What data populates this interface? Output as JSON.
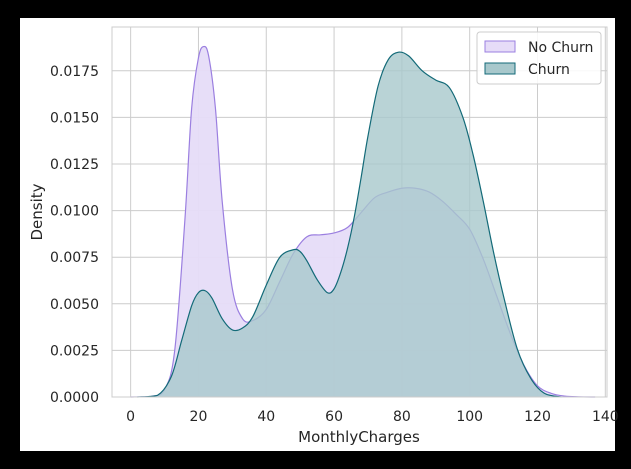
{
  "chart_data": {
    "type": "area",
    "title": "",
    "xlabel": "MonthlyCharges",
    "ylabel": "Density",
    "xlim": [
      -5.5,
      140.5
    ],
    "ylim": [
      0,
      0.01985
    ],
    "x_ticks": [
      "0",
      "20",
      "40",
      "60",
      "80",
      "100",
      "120",
      "140"
    ],
    "y_ticks": [
      "0.0000",
      "0.0025",
      "0.0050",
      "0.0075",
      "0.0100",
      "0.0125",
      "0.0150",
      "0.0175"
    ],
    "grid": true,
    "legend_position": "top-right",
    "series": [
      {
        "name": "No Churn",
        "fill_color": "#e6dcf8",
        "line_color": "#9b7fe0",
        "x": [
          0,
          6,
          10,
          13,
          16,
          18,
          20,
          21.5,
          23,
          25,
          27,
          30,
          33,
          36,
          40,
          44,
          48,
          52,
          56,
          60,
          64,
          68,
          72,
          76,
          80,
          84,
          88,
          92,
          96,
          100,
          104,
          108,
          112,
          116,
          120,
          124,
          128,
          132,
          137
        ],
        "values": [
          0,
          3e-05,
          0.0004,
          0.0025,
          0.0095,
          0.0155,
          0.0182,
          0.0188,
          0.0183,
          0.0155,
          0.0105,
          0.0058,
          0.0042,
          0.0041,
          0.0047,
          0.0062,
          0.0077,
          0.0086,
          0.0087,
          0.0088,
          0.0091,
          0.0099,
          0.0107,
          0.011,
          0.0112,
          0.0112,
          0.011,
          0.0105,
          0.0098,
          0.009,
          0.0074,
          0.0054,
          0.0034,
          0.0017,
          0.0006,
          0.0002,
          5e-05,
          1e-05,
          0
        ]
      },
      {
        "name": "Churn",
        "fill_color": "#a8c8cc",
        "line_color": "#136a78",
        "x": [
          2,
          8,
          12,
          15,
          18,
          20,
          22,
          24,
          27,
          30,
          33,
          36,
          40,
          44,
          48,
          50,
          52,
          55,
          58,
          60,
          62,
          64,
          66,
          68,
          70,
          73,
          76,
          79,
          82,
          86,
          90,
          94,
          98,
          101,
          104,
          107,
          110,
          114,
          118,
          122,
          127
        ],
        "values": [
          0,
          0.0001,
          0.0011,
          0.003,
          0.0049,
          0.0056,
          0.0057,
          0.0053,
          0.0042,
          0.0036,
          0.0037,
          0.0043,
          0.006,
          0.0075,
          0.0079,
          0.0078,
          0.0073,
          0.0063,
          0.0056,
          0.0058,
          0.0067,
          0.008,
          0.0097,
          0.0118,
          0.014,
          0.0167,
          0.0181,
          0.0185,
          0.0183,
          0.0175,
          0.017,
          0.0166,
          0.015,
          0.013,
          0.0105,
          0.0078,
          0.0054,
          0.0026,
          0.001,
          0.0002,
          0
        ]
      }
    ]
  }
}
